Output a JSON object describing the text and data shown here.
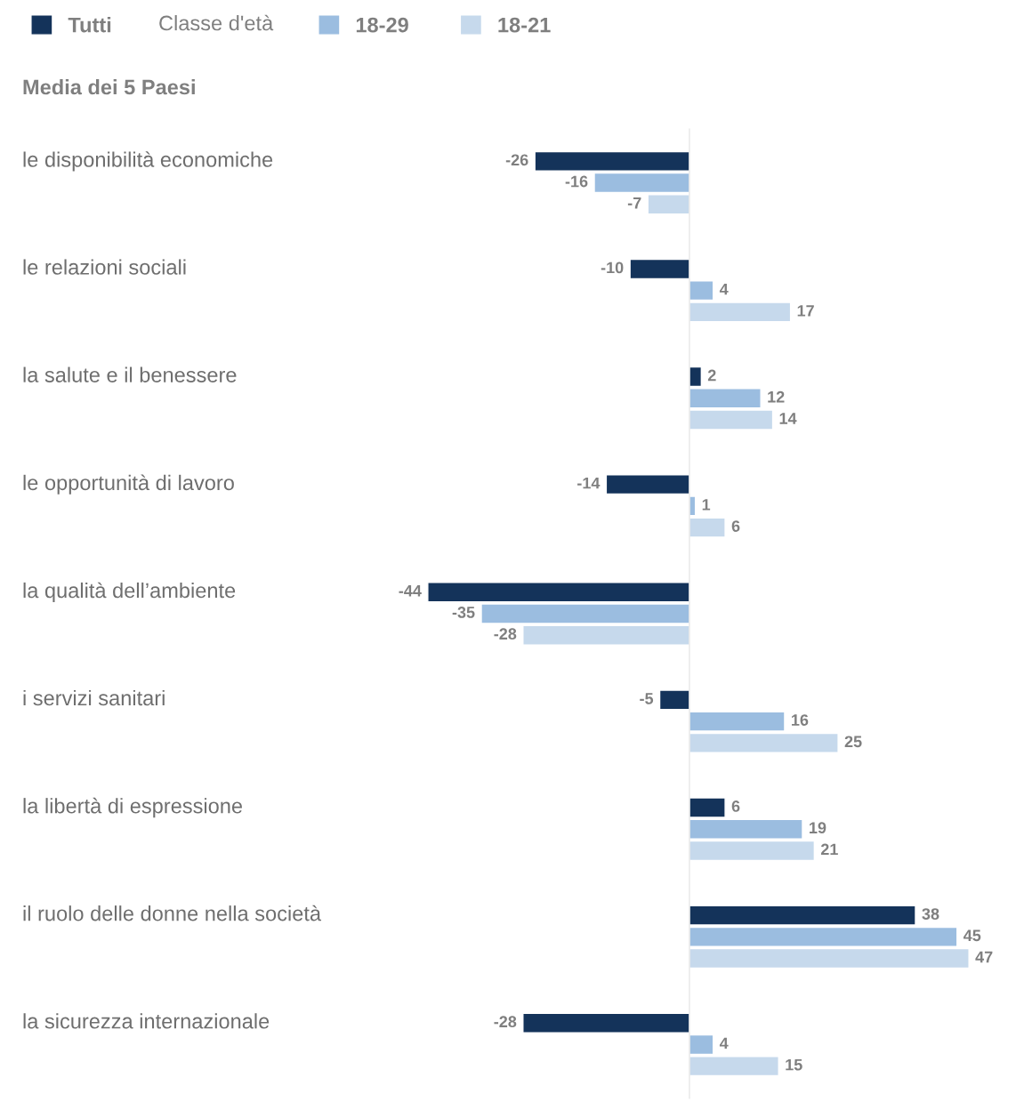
{
  "chart_data": {
    "type": "bar",
    "orientation": "horizontal",
    "title": "Media dei 5 Paesi",
    "legend_title": "Classe d'età",
    "legend": "top left",
    "data_labels": true,
    "categories": [
      "le disponibilità economiche",
      "le relazioni sociali",
      "la salute e il benessere",
      "le opportunità di lavoro",
      "la qualità dell’ambiente",
      "i servizi sanitari",
      "la libertà di espressione",
      "il ruolo delle donne nella società",
      "la sicurezza internazionale"
    ],
    "series": [
      {
        "name": "Tutti",
        "color": "#14335a",
        "values": [
          -26,
          -10,
          2,
          -14,
          -44,
          -5,
          6,
          38,
          -28
        ]
      },
      {
        "name": "18-29",
        "color": "#9bbde0",
        "values": [
          -16,
          4,
          12,
          1,
          -35,
          16,
          19,
          45,
          4
        ]
      },
      {
        "name": "18-21",
        "color": "#c6d9ec",
        "values": [
          -7,
          17,
          14,
          6,
          -28,
          25,
          21,
          47,
          15
        ]
      }
    ]
  }
}
